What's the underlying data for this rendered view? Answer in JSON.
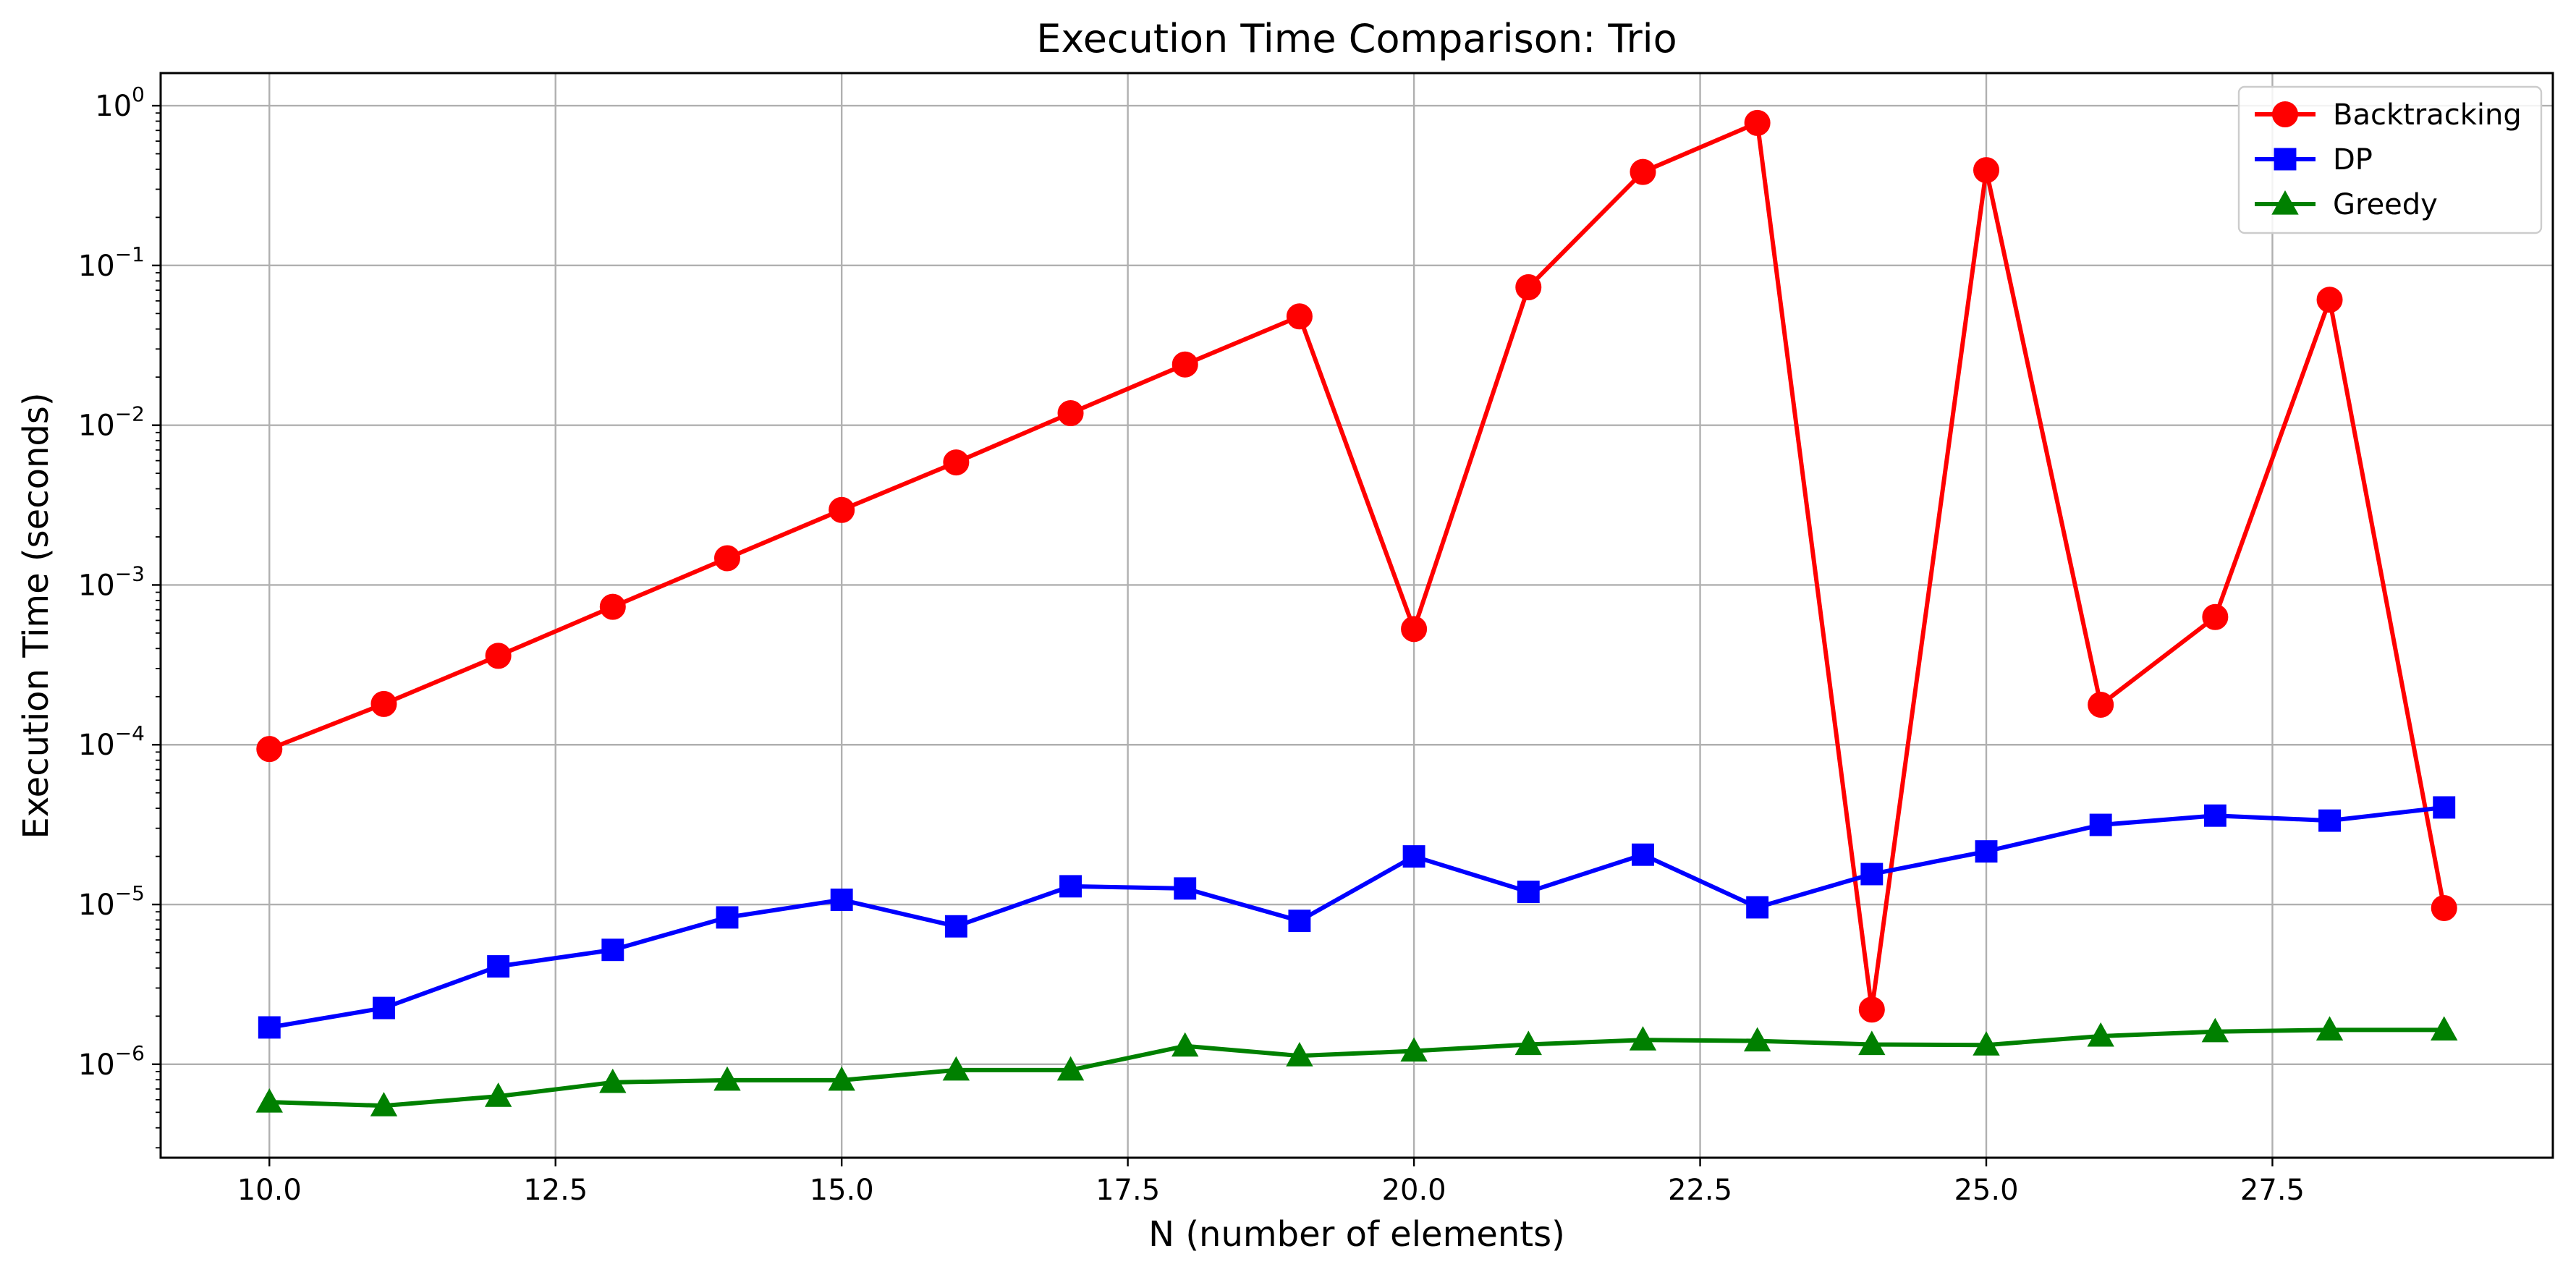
{
  "chart_data": {
    "type": "line",
    "title": "Execution Time Comparison: Trio",
    "xlabel": "N (number of elements)",
    "ylabel": "Execution Time (seconds)",
    "yscale": "log",
    "xlim": [
      9.05,
      29.95
    ],
    "ylim": [
      2.6e-07,
      1.6
    ],
    "grid": true,
    "legend_position": "top-right",
    "x": [
      10,
      11,
      12,
      13,
      14,
      15,
      16,
      17,
      18,
      19,
      20,
      21,
      22,
      23,
      24,
      25,
      26,
      27,
      28,
      29
    ],
    "x_ticks": [
      10.0,
      12.5,
      15.0,
      17.5,
      20.0,
      22.5,
      25.0,
      27.5
    ],
    "x_tick_labels": [
      "10.0",
      "12.5",
      "15.0",
      "17.5",
      "20.0",
      "22.5",
      "25.0",
      "27.5"
    ],
    "y_ticks": [
      {
        "value": 1e-06,
        "base": "10",
        "exp": "−6"
      },
      {
        "value": 1e-05,
        "base": "10",
        "exp": "−5"
      },
      {
        "value": 0.0001,
        "base": "10",
        "exp": "−4"
      },
      {
        "value": 0.001,
        "base": "10",
        "exp": "−3"
      },
      {
        "value": 0.01,
        "base": "10",
        "exp": "−2"
      },
      {
        "value": 0.1,
        "base": "10",
        "exp": "−1"
      },
      {
        "value": 1,
        "base": "10",
        "exp": "0"
      }
    ],
    "series": [
      {
        "name": "Backtracking",
        "color": "#ff0000",
        "marker": "circle",
        "values": [
          9.4e-05,
          0.00018,
          0.00036,
          0.00073,
          0.00147,
          0.00295,
          0.00585,
          0.0119,
          0.024,
          0.048,
          0.00053,
          0.073,
          0.385,
          0.78,
          2.2e-06,
          0.395,
          0.000178,
          0.00063,
          0.061,
          9.5e-06
        ]
      },
      {
        "name": "DP",
        "color": "#0000ff",
        "marker": "square",
        "values": [
          1.7e-06,
          2.25e-06,
          4.1e-06,
          5.2e-06,
          8.3e-06,
          1.07e-05,
          7.3e-06,
          1.3e-05,
          1.26e-05,
          7.9e-06,
          2e-05,
          1.2e-05,
          2.05e-05,
          9.6e-06,
          1.55e-05,
          2.15e-05,
          3.15e-05,
          3.6e-05,
          3.35e-05,
          4.05e-05
        ]
      },
      {
        "name": "Greedy",
        "color": "#008000",
        "marker": "triangle",
        "values": [
          5.8e-07,
          5.5e-07,
          6.3e-07,
          7.7e-07,
          7.95e-07,
          7.95e-07,
          9.2e-07,
          9.2e-07,
          1.3e-06,
          1.13e-06,
          1.21e-06,
          1.33e-06,
          1.42e-06,
          1.4e-06,
          1.33e-06,
          1.32e-06,
          1.5e-06,
          1.6e-06,
          1.64e-06,
          1.64e-06
        ]
      }
    ]
  }
}
